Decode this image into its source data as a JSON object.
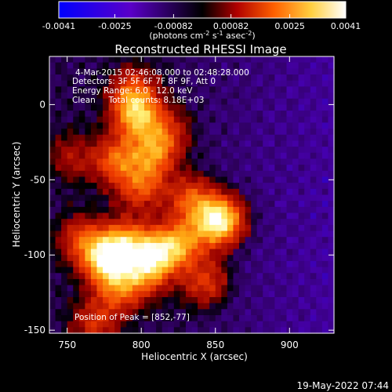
{
  "colorbar": {
    "ticks": [
      "-0.0041",
      "-0.0025",
      "-0.00082",
      "0.00082",
      "0.0025",
      "0.0041"
    ],
    "units_main": "(photons cm",
    "units_exp1": "-2",
    "units_mid": " s",
    "units_exp2": "-1",
    "units_mid2": " asec",
    "units_exp3": "-2",
    "units_end": ")",
    "range": [
      -0.0041,
      0.0041
    ],
    "colors": [
      "#0000ff",
      "#5a00c8",
      "#000000",
      "#b00000",
      "#ff8000",
      "#ffff80",
      "#ffffff"
    ]
  },
  "image": {
    "title": "Reconstructed RHESSI Image",
    "info_lines": [
      "4-Mar-2015 02:46:08.000 to 02:48:28.000",
      "Detectors: 3F 5F 6F 7F 8F 9F, Att 0",
      "Energy Range: 6.0 - 12.0 keV",
      "Clean     Total counts: 8.18E+03"
    ],
    "peak_label": "Position of Peak = [852,-77]",
    "footer_date": "19-May-2022 07:44"
  },
  "chart_data": {
    "type": "heatmap",
    "title": "Reconstructed RHESSI Image",
    "xlabel": "Heliocentric X (arcsec)",
    "ylabel": "Heliocentric Y (arcsec)",
    "xlim": [
      738,
      930
    ],
    "ylim": [
      -152,
      32
    ],
    "xticks": [
      750,
      800,
      850,
      900
    ],
    "yticks": [
      0,
      -50,
      -100,
      -150
    ],
    "peak": [
      852,
      -77
    ],
    "sources": [
      {
        "x": 852,
        "y": -77,
        "amplitude": 1.0
      },
      {
        "x": 777,
        "y": -103,
        "amplitude": 0.88
      },
      {
        "x": 790,
        "y": -92,
        "amplitude": 0.55
      },
      {
        "x": 812,
        "y": -98,
        "amplitude": 0.62
      },
      {
        "x": 803,
        "y": -110,
        "amplitude": 0.55
      },
      {
        "x": 797,
        "y": -8,
        "amplitude": 0.65
      },
      {
        "x": 795,
        "y": 8,
        "amplitude": 0.45
      },
      {
        "x": 783,
        "y": -37,
        "amplitude": 0.5
      },
      {
        "x": 808,
        "y": -33,
        "amplitude": 0.52
      },
      {
        "x": 800,
        "y": -55,
        "amplitude": 0.45
      },
      {
        "x": 833,
        "y": -63,
        "amplitude": 0.45
      },
      {
        "x": 828,
        "y": -92,
        "amplitude": 0.5
      },
      {
        "x": 785,
        "y": -123,
        "amplitude": 0.48
      },
      {
        "x": 760,
        "y": -90,
        "amplitude": 0.42
      },
      {
        "x": 843,
        "y": -118,
        "amplitude": 0.38
      },
      {
        "x": 753,
        "y": -35,
        "amplitude": 0.25
      },
      {
        "x": 817,
        "y": -18,
        "amplitude": 0.32
      },
      {
        "x": 768,
        "y": -145,
        "amplitude": 0.35
      }
    ]
  }
}
